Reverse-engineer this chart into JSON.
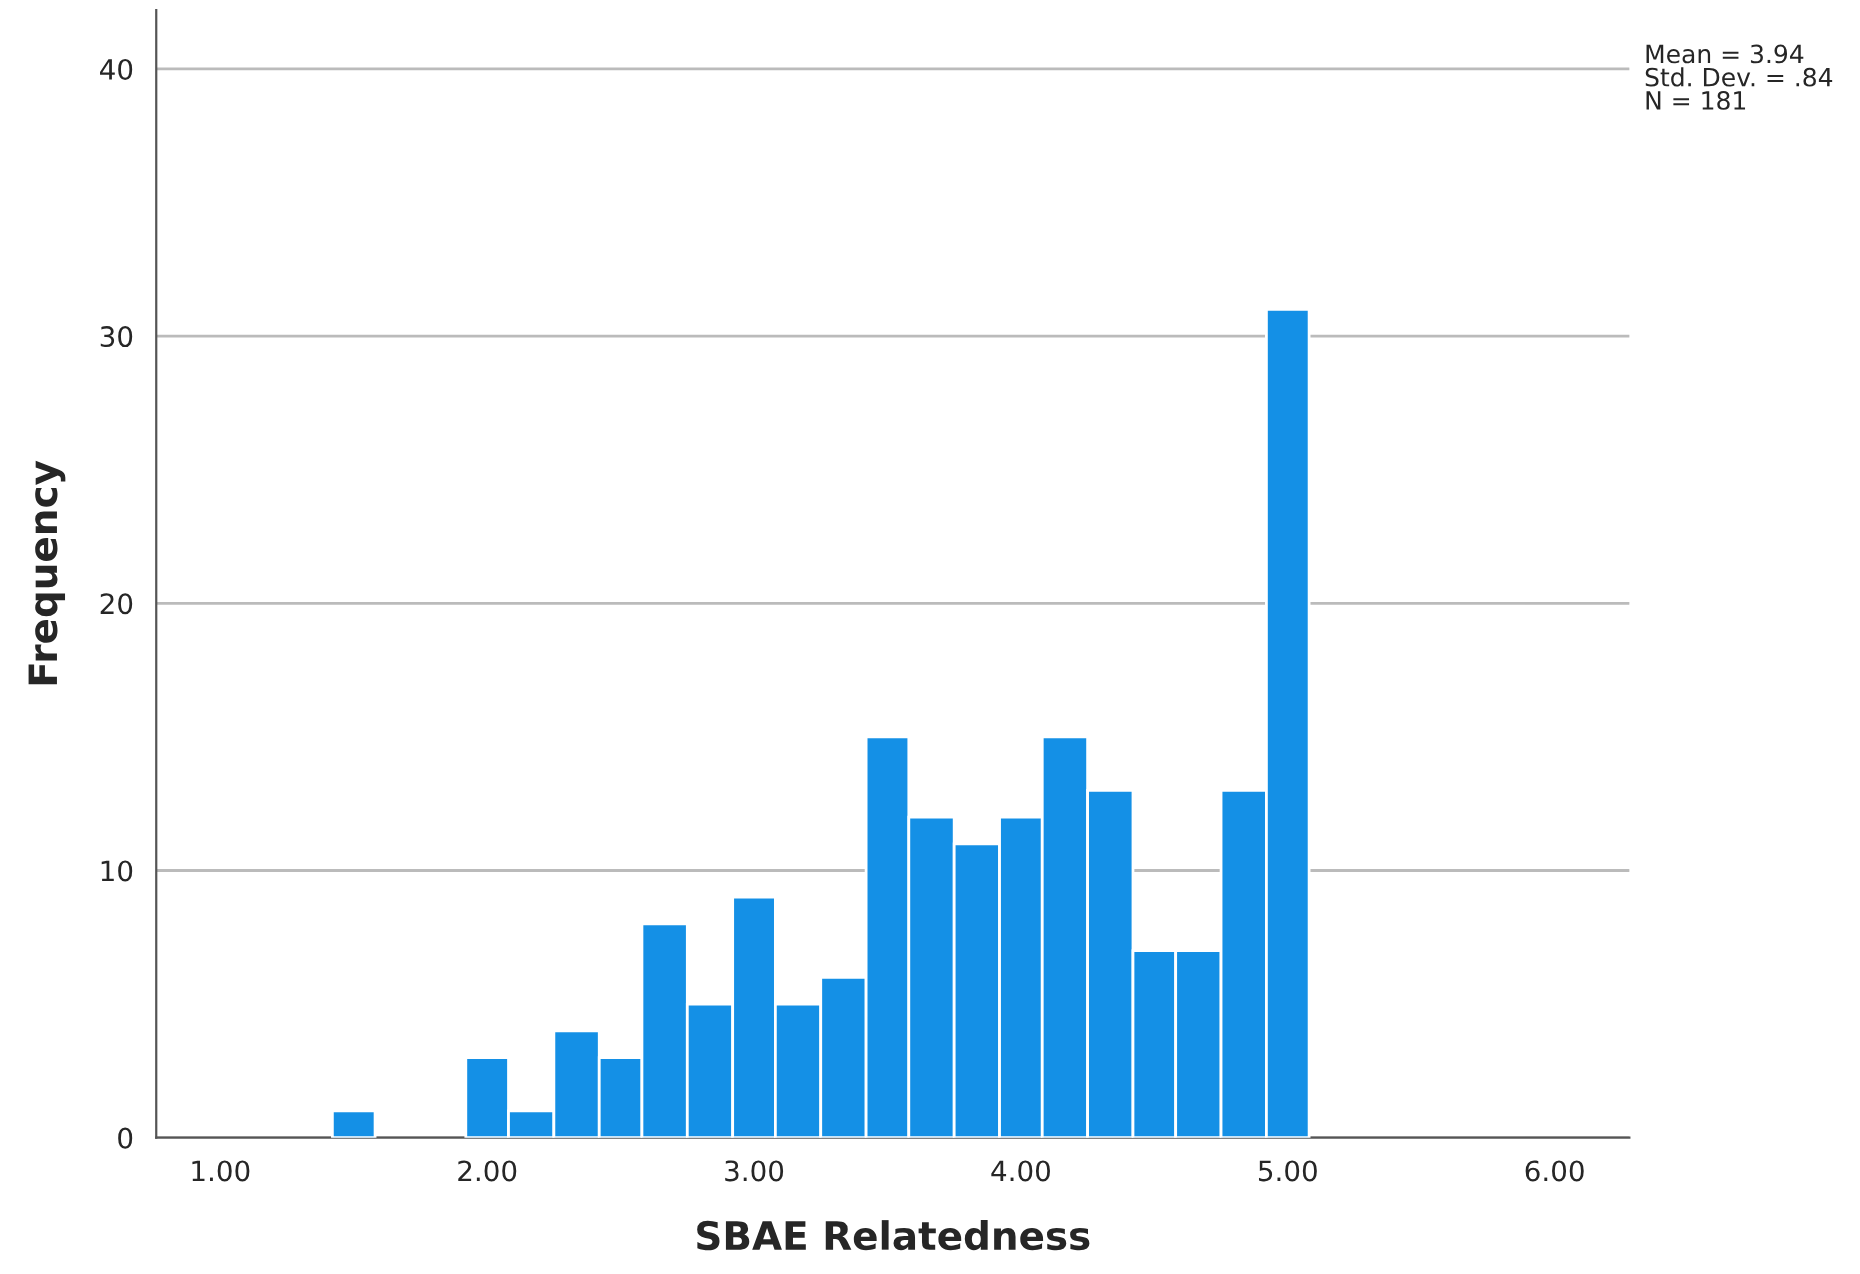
{
  "chart_data": {
    "type": "histogram",
    "xlabel": "SBAE Relatedness",
    "ylabel": "Frequency",
    "bins": [
      1.42,
      1.58,
      1.92,
      2.08,
      2.25,
      2.42,
      2.58,
      2.75,
      2.92,
      3.08,
      3.25,
      3.42,
      3.58,
      3.75,
      3.92,
      4.08,
      4.25,
      4.42,
      4.58,
      4.75,
      4.92,
      5.08
    ],
    "values": [
      1,
      0,
      3,
      1,
      4,
      3,
      8,
      5,
      9,
      5,
      6,
      15,
      12,
      11,
      12,
      15,
      13,
      7,
      7,
      13,
      31
    ],
    "color": "#1490e6",
    "xlim": [
      0.76,
      6.28
    ],
    "xticks": [
      {
        "value": 1,
        "label": "1.00"
      },
      {
        "value": 2,
        "label": "2.00"
      },
      {
        "value": 3,
        "label": "3.00"
      },
      {
        "value": 4,
        "label": "4.00"
      },
      {
        "value": 5,
        "label": "5.00"
      },
      {
        "value": 6,
        "label": "6.00"
      }
    ],
    "ylim": [
      0,
      42.2
    ],
    "yticks": [
      0,
      10,
      20,
      30,
      40
    ],
    "grid": "y",
    "annotations": [
      "Mean = 3.94\nStd. Dev. = .84\nN = 181"
    ]
  }
}
